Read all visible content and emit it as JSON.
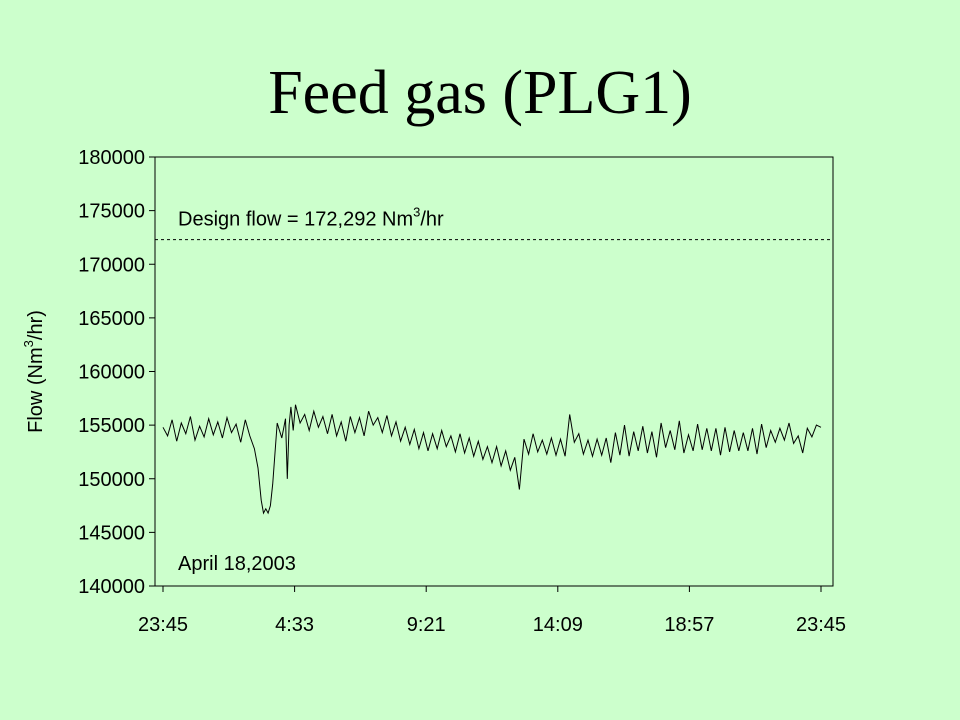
{
  "slide": {
    "title": "Feed gas (PLG1)"
  },
  "chart_data": {
    "type": "line",
    "title": "",
    "xlabel": "",
    "ylabel": "Flow (Nm3/hr)",
    "ylabel_parts": {
      "prefix": "Flow (Nm",
      "sup": "3",
      "suffix": "/hr)"
    },
    "ylim": [
      140000,
      180000
    ],
    "y_ticks": [
      140000,
      145000,
      150000,
      155000,
      160000,
      165000,
      170000,
      175000,
      180000
    ],
    "y_tick_labels": [
      "140000",
      "145000",
      "150000",
      "155000",
      "160000",
      "165000",
      "170000",
      "175000",
      "180000"
    ],
    "xlim": [
      0,
      1440
    ],
    "x_tick_minutes": [
      0,
      288,
      576,
      864,
      1152,
      1440
    ],
    "x_tick_labels": [
      "23:45",
      "4:33",
      "9:21",
      "14:09",
      "18:57",
      "23:45"
    ],
    "grid": false,
    "design_flow": {
      "value": 172292,
      "label_prefix": "Design flow = 172,292 Nm",
      "label_sup": "3",
      "label_suffix": "/hr",
      "style": "dashed"
    },
    "date_annotation": "April 18,2003",
    "series": [
      {
        "name": "",
        "x": [
          0,
          10,
          20,
          30,
          40,
          50,
          60,
          70,
          80,
          90,
          100,
          110,
          120,
          130,
          140,
          150,
          160,
          170,
          180,
          190,
          200,
          208,
          215,
          220,
          225,
          230,
          235,
          240,
          250,
          260,
          268,
          272,
          276,
          280,
          285,
          290,
          300,
          310,
          320,
          330,
          340,
          350,
          360,
          370,
          380,
          390,
          400,
          410,
          420,
          430,
          440,
          450,
          460,
          470,
          480,
          490,
          500,
          510,
          520,
          530,
          540,
          550,
          560,
          570,
          580,
          590,
          600,
          610,
          620,
          630,
          640,
          650,
          660,
          670,
          680,
          690,
          700,
          710,
          720,
          730,
          740,
          750,
          760,
          770,
          780,
          790,
          800,
          810,
          820,
          830,
          840,
          850,
          860,
          870,
          880,
          890,
          900,
          910,
          920,
          930,
          940,
          950,
          960,
          970,
          980,
          990,
          1000,
          1010,
          1020,
          1030,
          1040,
          1050,
          1060,
          1070,
          1080,
          1090,
          1100,
          1110,
          1120,
          1130,
          1140,
          1150,
          1160,
          1170,
          1180,
          1190,
          1200,
          1210,
          1220,
          1230,
          1240,
          1250,
          1260,
          1270,
          1280,
          1290,
          1300,
          1310,
          1320,
          1330,
          1340,
          1350,
          1360,
          1370,
          1380,
          1390,
          1400,
          1410,
          1420,
          1430,
          1440
        ],
        "values": [
          154800,
          154000,
          155500,
          153500,
          155200,
          154200,
          155800,
          153600,
          154900,
          153900,
          155600,
          154100,
          155300,
          153800,
          155700,
          154300,
          155100,
          153400,
          155500,
          154000,
          152800,
          151000,
          148000,
          146800,
          147200,
          146800,
          147500,
          149500,
          155200,
          153800,
          155600,
          150000,
          155000,
          156700,
          154500,
          156900,
          155200,
          156000,
          154500,
          156300,
          154800,
          155800,
          154200,
          156000,
          154000,
          155300,
          153500,
          155800,
          154300,
          155700,
          154000,
          156300,
          155000,
          155700,
          154300,
          155900,
          154000,
          155300,
          153500,
          154800,
          153200,
          154600,
          152800,
          154300,
          152600,
          154200,
          152800,
          154500,
          153000,
          154000,
          152500,
          154200,
          152400,
          153800,
          152100,
          153500,
          151800,
          153000,
          151500,
          153000,
          151200,
          152600,
          150800,
          152000,
          149000,
          153700,
          152300,
          154200,
          152500,
          153600,
          152300,
          153800,
          152200,
          153700,
          152100,
          156000,
          153400,
          154200,
          152300,
          153600,
          152100,
          153700,
          152200,
          153800,
          151500,
          154300,
          152200,
          155000,
          152100,
          154400,
          152600,
          154900,
          152400,
          154400,
          152000,
          155200,
          152900,
          154500,
          152700,
          155400,
          152400,
          154100,
          152600,
          155100,
          152700,
          154700,
          152600,
          154700,
          152200,
          154800,
          152500,
          154500,
          152600,
          154300,
          152600,
          154700,
          152300,
          155100,
          152900,
          154500,
          153400,
          154700,
          153600,
          155200,
          153300,
          154000,
          152400,
          154700,
          153900,
          155000,
          154800
        ]
      }
    ]
  }
}
